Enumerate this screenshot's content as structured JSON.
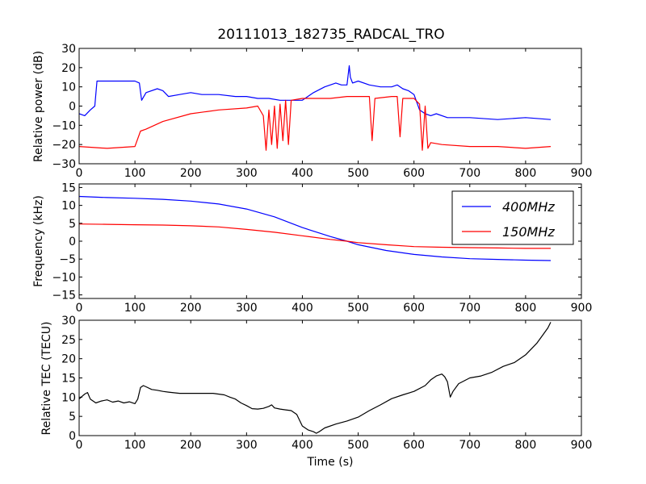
{
  "title": "20111013_182735_RADCAL_TRO",
  "chart_data": [
    {
      "type": "line",
      "ylabel": "Relative power (dB)",
      "xlabel": "",
      "xlim": [
        0,
        900
      ],
      "ylim": [
        -30,
        30
      ],
      "xticks": [
        "0",
        "100",
        "200",
        "300",
        "400",
        "500",
        "600",
        "700",
        "800",
        "900"
      ],
      "yticks": [
        "−30",
        "−20",
        "−10",
        "0",
        "10",
        "20",
        "30"
      ],
      "grid": false,
      "series": [
        {
          "color": "#0000ff",
          "x": [
            0,
            10,
            20,
            28,
            32,
            40,
            60,
            80,
            100,
            108,
            112,
            120,
            140,
            150,
            160,
            180,
            200,
            220,
            250,
            280,
            300,
            320,
            340,
            360,
            380,
            400,
            420,
            440,
            460,
            470,
            480,
            484,
            486,
            490,
            500,
            520,
            540,
            560,
            570,
            580,
            590,
            600,
            610,
            620,
            630,
            640,
            660,
            700,
            750,
            800,
            845
          ],
          "y": [
            -4,
            -5,
            -2,
            0,
            13,
            13,
            13,
            13,
            13,
            12,
            3,
            7,
            9,
            8,
            5,
            6,
            7,
            6,
            6,
            5,
            5,
            4,
            4,
            3,
            3,
            3,
            7,
            10,
            12,
            11,
            11,
            21,
            15,
            12,
            13,
            11,
            10,
            10,
            11,
            9,
            8,
            6,
            -2,
            -4,
            -5,
            -4,
            -6,
            -6,
            -7,
            -6,
            -7
          ]
        },
        {
          "color": "#ff0000",
          "x": [
            0,
            50,
            100,
            110,
            120,
            150,
            200,
            250,
            300,
            320,
            330,
            335,
            340,
            345,
            350,
            355,
            360,
            365,
            370,
            375,
            380,
            400,
            450,
            480,
            500,
            520,
            525,
            530,
            560,
            570,
            575,
            580,
            600,
            610,
            615,
            620,
            625,
            630,
            650,
            700,
            750,
            800,
            845
          ],
          "y": [
            -21,
            -22,
            -21,
            -13,
            -12,
            -8,
            -4,
            -2,
            -1,
            0,
            -5,
            -23,
            -2,
            -20,
            0,
            -22,
            1,
            -18,
            3,
            -20,
            3,
            4,
            4,
            5,
            5,
            5,
            -18,
            4,
            5,
            5,
            -16,
            4,
            4,
            1,
            -23,
            0,
            -22,
            -19,
            -20,
            -21,
            -21,
            -22,
            -21
          ]
        }
      ]
    },
    {
      "type": "line",
      "ylabel": "Frequency (kHz)",
      "xlabel": "",
      "xlim": [
        0,
        900
      ],
      "ylim": [
        -16,
        16
      ],
      "xticks": [
        "0",
        "100",
        "200",
        "300",
        "400",
        "500",
        "600",
        "700",
        "800",
        "900"
      ],
      "yticks": [
        "−15",
        "−10",
        "−5",
        "0",
        "5",
        "10",
        "15"
      ],
      "grid": false,
      "legend": "top-right",
      "series": [
        {
          "name": "400MHz",
          "color": "#0000ff",
          "x": [
            0,
            50,
            100,
            150,
            200,
            250,
            300,
            350,
            400,
            450,
            480,
            500,
            550,
            600,
            650,
            700,
            750,
            800,
            845
          ],
          "y": [
            12.5,
            12.2,
            12.0,
            11.7,
            11.2,
            10.4,
            9.0,
            6.8,
            3.8,
            1.3,
            0.0,
            -1.0,
            -2.6,
            -3.7,
            -4.4,
            -4.9,
            -5.1,
            -5.3,
            -5.4
          ]
        },
        {
          "name": "150MHz",
          "color": "#ff0000",
          "x": [
            0,
            50,
            100,
            150,
            200,
            250,
            300,
            350,
            400,
            450,
            480,
            500,
            550,
            600,
            650,
            700,
            750,
            800,
            845
          ],
          "y": [
            4.8,
            4.7,
            4.6,
            4.5,
            4.3,
            4.0,
            3.3,
            2.5,
            1.5,
            0.5,
            0.0,
            -0.4,
            -1.0,
            -1.5,
            -1.7,
            -1.8,
            -1.9,
            -2.0,
            -2.0
          ]
        }
      ]
    },
    {
      "type": "line",
      "ylabel": "Relative TEC (TECU)",
      "xlabel": "Time (s)",
      "xlim": [
        0,
        900
      ],
      "ylim": [
        0,
        30
      ],
      "xticks": [
        "0",
        "100",
        "200",
        "300",
        "400",
        "500",
        "600",
        "700",
        "800",
        "900"
      ],
      "yticks": [
        "0",
        "5",
        "10",
        "15",
        "20",
        "25",
        "30"
      ],
      "grid": false,
      "series": [
        {
          "color": "#000000",
          "x": [
            0,
            5,
            10,
            15,
            20,
            30,
            40,
            50,
            60,
            70,
            80,
            90,
            100,
            105,
            110,
            115,
            120,
            130,
            140,
            150,
            160,
            180,
            200,
            220,
            240,
            260,
            270,
            280,
            290,
            300,
            310,
            320,
            330,
            340,
            345,
            350,
            360,
            370,
            380,
            390,
            400,
            410,
            420,
            425,
            430,
            440,
            460,
            480,
            500,
            520,
            540,
            560,
            580,
            600,
            620,
            630,
            640,
            650,
            655,
            660,
            665,
            670,
            680,
            700,
            720,
            740,
            760,
            780,
            800,
            820,
            830,
            840,
            845
          ],
          "y": [
            9.5,
            10.2,
            10.8,
            11.2,
            9.5,
            8.5,
            9.0,
            9.3,
            8.7,
            9.0,
            8.5,
            8.8,
            8.3,
            9.5,
            12.5,
            13.0,
            12.7,
            12.0,
            11.8,
            11.5,
            11.3,
            11.0,
            11.0,
            11.0,
            11.0,
            10.6,
            10.0,
            9.5,
            8.5,
            7.8,
            7.0,
            6.9,
            7.1,
            7.6,
            8.0,
            7.2,
            6.9,
            6.7,
            6.5,
            5.5,
            2.5,
            1.5,
            1.0,
            0.6,
            1.0,
            2.0,
            3.0,
            3.8,
            4.8,
            6.5,
            8.0,
            9.6,
            10.6,
            11.5,
            13.0,
            14.5,
            15.5,
            16.0,
            15.3,
            14.0,
            10.0,
            11.5,
            13.5,
            15.0,
            15.5,
            16.5,
            18.0,
            19.0,
            21.0,
            24.0,
            26.0,
            28.0,
            29.5
          ]
        }
      ]
    }
  ]
}
